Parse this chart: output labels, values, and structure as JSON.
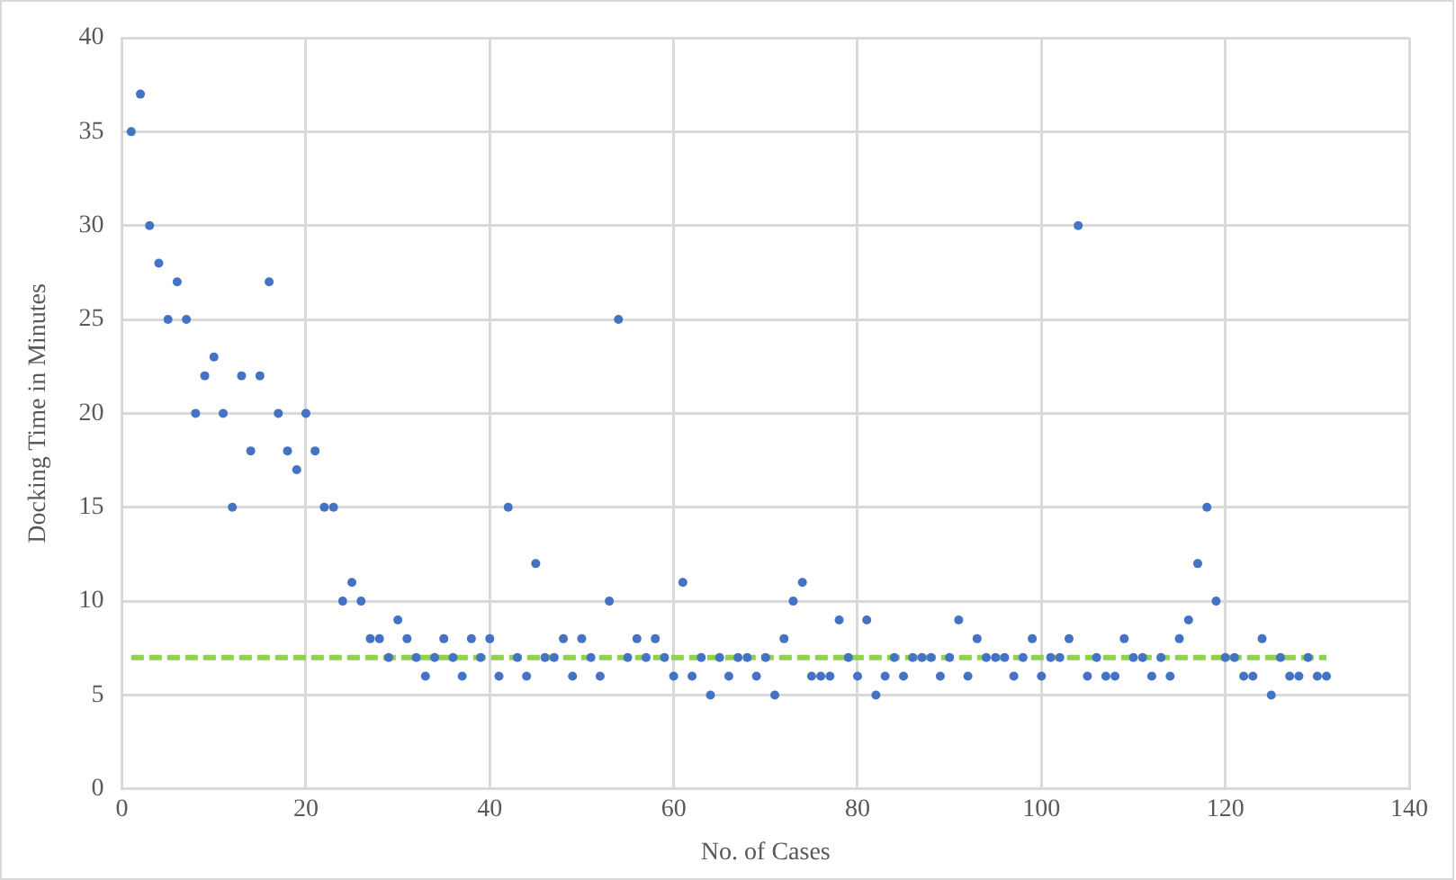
{
  "chart_data": {
    "type": "scatter",
    "xlabel": "No. of Cases",
    "ylabel": "Docking Time in Minutes",
    "xlim": [
      0,
      140
    ],
    "xticks": [
      0,
      20,
      40,
      60,
      80,
      100,
      120,
      140
    ],
    "ylim": [
      0,
      40
    ],
    "yticks": [
      0,
      5,
      10,
      15,
      20,
      25,
      30,
      35,
      40
    ],
    "grid": true,
    "legend": false,
    "marker": "circle",
    "series": [
      {
        "type": "scatter",
        "color": "#4472c4",
        "x": [
          1,
          2,
          3,
          4,
          5,
          6,
          7,
          8,
          9,
          10,
          11,
          12,
          13,
          14,
          15,
          16,
          17,
          18,
          19,
          20,
          21,
          22,
          23,
          24,
          25,
          26,
          27,
          28,
          29,
          30,
          31,
          32,
          33,
          34,
          35,
          36,
          37,
          38,
          39,
          40,
          41,
          42,
          43,
          44,
          45,
          46,
          47,
          48,
          49,
          50,
          51,
          52,
          53,
          54,
          55,
          56,
          57,
          58,
          59,
          60,
          61,
          62,
          63,
          64,
          65,
          66,
          67,
          68,
          69,
          70,
          71,
          72,
          73,
          74,
          75,
          76,
          77,
          78,
          79,
          80,
          81,
          82,
          83,
          84,
          85,
          86,
          87,
          88,
          89,
          90,
          91,
          92,
          93,
          94,
          95,
          96,
          97,
          98,
          99,
          100,
          101,
          102,
          103,
          104,
          105,
          106,
          107,
          108,
          109,
          110,
          111,
          112,
          113,
          114,
          115,
          116,
          117,
          118,
          119,
          120,
          121,
          122,
          123,
          124,
          125,
          126,
          127,
          128,
          129,
          130,
          131
        ],
        "values": [
          35,
          37,
          30,
          28,
          25,
          27,
          25,
          20,
          22,
          23,
          20,
          15,
          22,
          18,
          22,
          27,
          20,
          18,
          17,
          20,
          18,
          15,
          15,
          10,
          11,
          10,
          8,
          8,
          7,
          9,
          8,
          7,
          6,
          7,
          8,
          7,
          6,
          8,
          7,
          8,
          6,
          15,
          7,
          6,
          12,
          7,
          7,
          8,
          6,
          8,
          7,
          6,
          10,
          25,
          7,
          8,
          7,
          8,
          7,
          6,
          11,
          6,
          7,
          5,
          7,
          6,
          7,
          7,
          6,
          7,
          5,
          8,
          10,
          11,
          6,
          6,
          6,
          9,
          7,
          6,
          9,
          5,
          6,
          7,
          6,
          7,
          7,
          7,
          6,
          7,
          9,
          6,
          8,
          7,
          7,
          7,
          6,
          7,
          8,
          6,
          7,
          7,
          8,
          30,
          6,
          7,
          6,
          6,
          8,
          7,
          7,
          6,
          7,
          6,
          8,
          9,
          12,
          15,
          10,
          7,
          7,
          6,
          6,
          8,
          5,
          7,
          6,
          6,
          7,
          6,
          6
        ]
      },
      {
        "type": "line",
        "color": "#92d050",
        "line_style": "dashed",
        "marker": "none",
        "x": [
          1,
          131
        ],
        "values": [
          7,
          7
        ]
      }
    ]
  }
}
